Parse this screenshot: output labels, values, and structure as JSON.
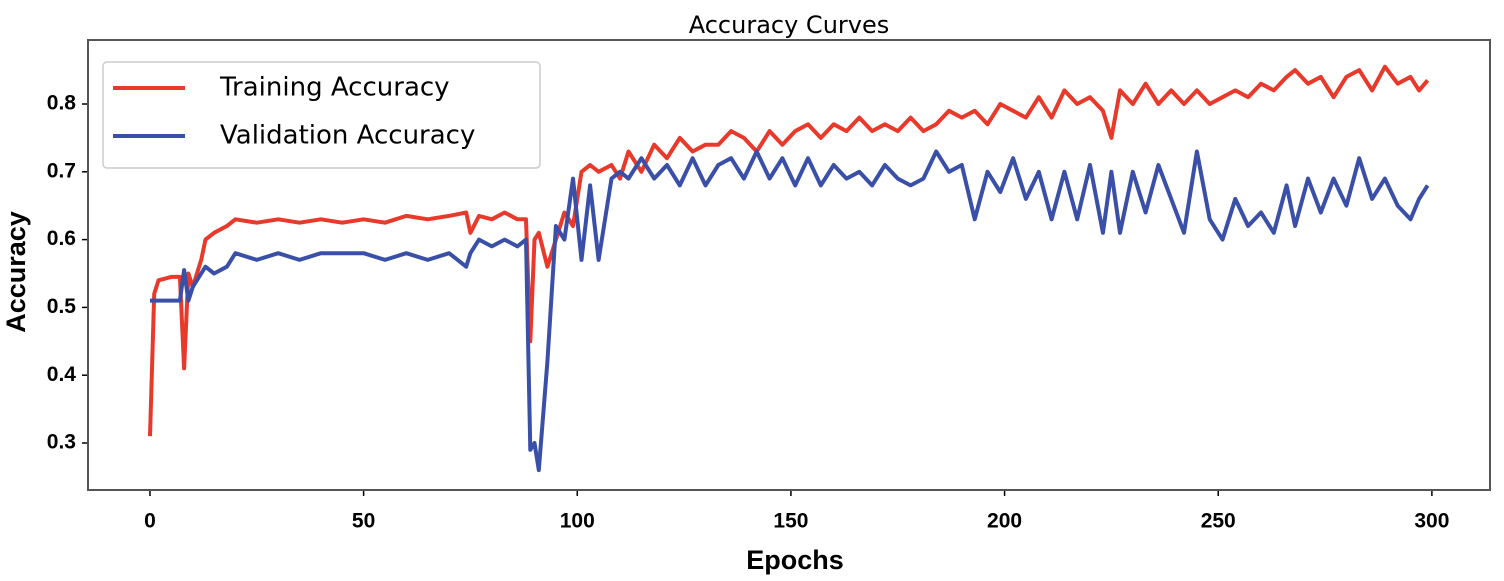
{
  "chart_data": {
    "type": "line",
    "title": "Accuracy Curves",
    "xlabel": "Epochs",
    "ylabel": "Accuracy",
    "x": [
      0,
      1,
      2,
      5,
      7,
      8,
      9,
      10,
      12,
      13,
      15,
      18,
      20,
      25,
      30,
      35,
      40,
      45,
      50,
      55,
      60,
      65,
      70,
      74,
      75,
      77,
      80,
      83,
      86,
      88,
      89,
      90,
      91,
      93,
      95,
      97,
      99,
      101,
      103,
      105,
      108,
      110,
      112,
      115,
      118,
      121,
      124,
      127,
      130,
      133,
      136,
      139,
      142,
      145,
      148,
      151,
      154,
      157,
      160,
      163,
      166,
      169,
      172,
      175,
      178,
      181,
      184,
      187,
      190,
      193,
      196,
      199,
      202,
      205,
      208,
      211,
      214,
      217,
      220,
      223,
      225,
      227,
      230,
      233,
      236,
      239,
      242,
      245,
      248,
      251,
      254,
      257,
      260,
      263,
      266,
      268,
      271,
      274,
      277,
      280,
      283,
      286,
      289,
      292,
      295,
      297,
      299
    ],
    "series": [
      {
        "name": "Training Accuracy",
        "color": "#e8392b",
        "values": [
          0.31,
          0.52,
          0.54,
          0.545,
          0.545,
          0.41,
          0.55,
          0.53,
          0.57,
          0.6,
          0.61,
          0.62,
          0.63,
          0.625,
          0.63,
          0.625,
          0.63,
          0.625,
          0.63,
          0.625,
          0.635,
          0.63,
          0.635,
          0.64,
          0.61,
          0.635,
          0.63,
          0.64,
          0.63,
          0.63,
          0.45,
          0.6,
          0.61,
          0.56,
          0.6,
          0.64,
          0.62,
          0.7,
          0.71,
          0.7,
          0.71,
          0.69,
          0.73,
          0.7,
          0.74,
          0.72,
          0.75,
          0.73,
          0.74,
          0.74,
          0.76,
          0.75,
          0.73,
          0.76,
          0.74,
          0.76,
          0.77,
          0.75,
          0.77,
          0.76,
          0.78,
          0.76,
          0.77,
          0.76,
          0.78,
          0.76,
          0.77,
          0.79,
          0.78,
          0.79,
          0.77,
          0.8,
          0.79,
          0.78,
          0.81,
          0.78,
          0.82,
          0.8,
          0.81,
          0.79,
          0.75,
          0.82,
          0.8,
          0.83,
          0.8,
          0.82,
          0.8,
          0.82,
          0.8,
          0.81,
          0.82,
          0.81,
          0.83,
          0.82,
          0.84,
          0.85,
          0.83,
          0.84,
          0.81,
          0.84,
          0.85,
          0.82,
          0.855,
          0.83,
          0.84,
          0.82,
          0.835
        ]
      },
      {
        "name": "Validation Accuracy",
        "color": "#3a4fa8",
        "values": [
          0.51,
          0.51,
          0.51,
          0.51,
          0.51,
          0.555,
          0.51,
          0.53,
          0.55,
          0.56,
          0.55,
          0.56,
          0.58,
          0.57,
          0.58,
          0.57,
          0.58,
          0.58,
          0.58,
          0.57,
          0.58,
          0.57,
          0.58,
          0.56,
          0.58,
          0.6,
          0.59,
          0.6,
          0.59,
          0.6,
          0.29,
          0.3,
          0.26,
          0.42,
          0.62,
          0.6,
          0.69,
          0.57,
          0.68,
          0.57,
          0.69,
          0.7,
          0.69,
          0.72,
          0.69,
          0.71,
          0.68,
          0.72,
          0.68,
          0.71,
          0.72,
          0.69,
          0.73,
          0.69,
          0.72,
          0.68,
          0.72,
          0.68,
          0.71,
          0.69,
          0.7,
          0.68,
          0.71,
          0.69,
          0.68,
          0.69,
          0.73,
          0.7,
          0.71,
          0.63,
          0.7,
          0.67,
          0.72,
          0.66,
          0.7,
          0.63,
          0.7,
          0.63,
          0.71,
          0.61,
          0.7,
          0.61,
          0.7,
          0.64,
          0.71,
          0.66,
          0.61,
          0.73,
          0.63,
          0.6,
          0.66,
          0.62,
          0.64,
          0.61,
          0.68,
          0.62,
          0.69,
          0.64,
          0.69,
          0.65,
          0.72,
          0.66,
          0.69,
          0.65,
          0.63,
          0.66,
          0.68
        ]
      }
    ],
    "xlim": [
      -14.5,
      313.6
    ],
    "ylim": [
      0.2307,
      0.8944
    ],
    "xticks": [
      0,
      50,
      100,
      150,
      200,
      250,
      300
    ],
    "yticks": [
      0.3,
      0.4,
      0.5,
      0.6,
      0.7,
      0.8
    ],
    "legend": "upper left"
  }
}
